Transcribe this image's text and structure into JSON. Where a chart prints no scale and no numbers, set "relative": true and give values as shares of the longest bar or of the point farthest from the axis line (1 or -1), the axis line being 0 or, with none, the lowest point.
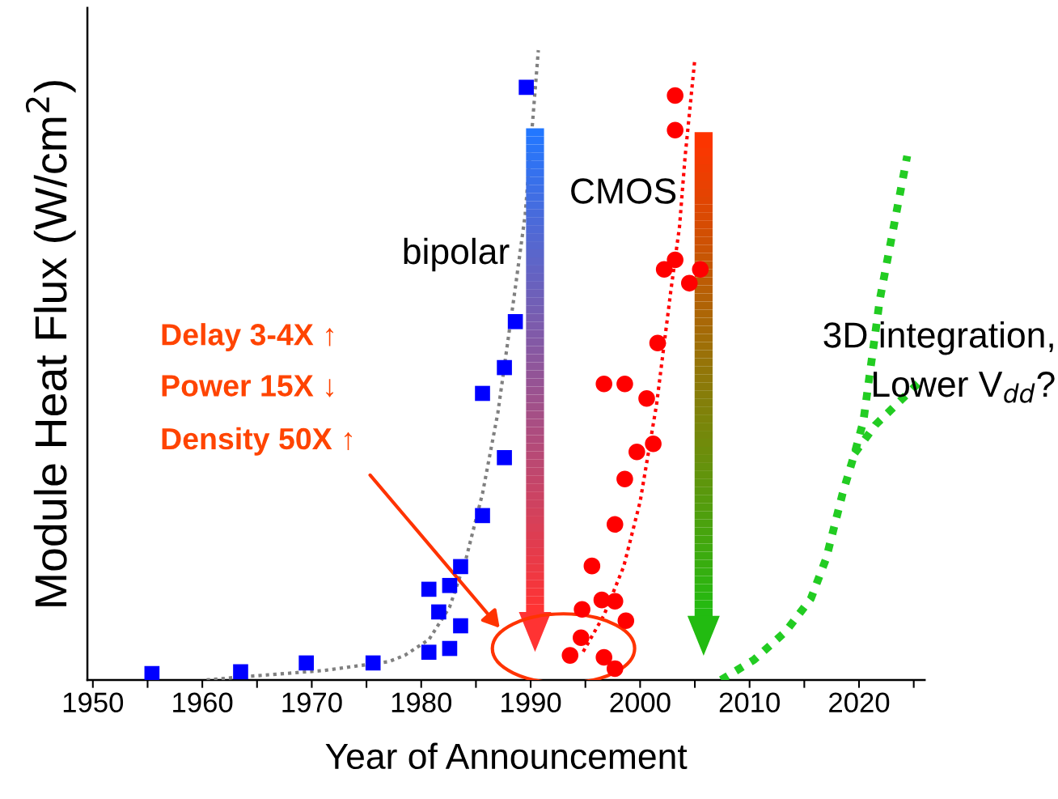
{
  "chart_data": {
    "type": "scatter",
    "relative": true,
    "xlabel": "Year of Announcement",
    "ylabel": "Module Heat Flux (W/cm$^{2}$)",
    "xlim": [
      1949.5,
      2026
    ],
    "xticks": [
      1950,
      {
        "value": 1955,
        "label": null
      },
      1960,
      {
        "value": 1965,
        "label": null
      },
      1970,
      {
        "value": 1975,
        "label": null
      },
      1980,
      {
        "value": 1985,
        "label": null
      },
      1990,
      {
        "value": 1995,
        "label": null
      },
      2000,
      {
        "value": 2005,
        "label": null
      },
      2010,
      {
        "value": 2015,
        "label": null
      },
      2020,
      {
        "value": 2025,
        "label": null
      }
    ],
    "grid": false,
    "legend": false,
    "series": [
      {
        "type": "scatter",
        "marker": "square",
        "color": "#0000ff",
        "x": [
          1955.4,
          1963.5,
          1969.5,
          1975.6,
          1980.7,
          1980.7,
          1981.6,
          1982.6,
          1982.6,
          1983.6,
          1983.6,
          1985.6,
          1985.6,
          1987.6,
          1987.6,
          1988.6,
          1989.6
        ],
        "values": [
          0.01,
          0.013,
          0.027,
          0.027,
          0.144,
          0.044,
          0.108,
          0.15,
          0.05,
          0.086,
          0.18,
          0.261,
          0.455,
          0.353,
          0.496,
          0.569,
          0.941
        ]
      },
      {
        "type": "scatter",
        "marker": "circle",
        "color": "#ff0000",
        "x": [
          1993.6,
          1994.6,
          1994.7,
          1995.6,
          1996.5,
          1997.7,
          1996.7,
          1997.7,
          1998.7,
          1996.7,
          1998.6,
          1997.7,
          1998.6,
          1999.7,
          2001.2,
          2000.6,
          2001.6,
          2002.2,
          2003.2,
          2004.5,
          2005.5,
          2003.2,
          2003.2
        ],
        "values": [
          0.039,
          0.067,
          0.112,
          0.181,
          0.127,
          0.125,
          0.036,
          0.018,
          0.094,
          0.47,
          0.47,
          0.247,
          0.319,
          0.362,
          0.375,
          0.447,
          0.535,
          0.652,
          0.667,
          0.63,
          0.652,
          0.873,
          0.928
        ]
      },
      {
        "type": "line",
        "line_style": "dotted",
        "color": "#808080",
        "x": [
          1960.4,
          1963.7,
          1971.1,
          1977.0,
          1978.5,
          1980.7,
          1982.6,
          1984.1,
          1985.6,
          1987.0,
          1988.6,
          1989.5,
          1990.7
        ],
        "values": [
          0.0,
          0.005,
          0.015,
          0.029,
          0.039,
          0.064,
          0.116,
          0.193,
          0.296,
          0.424,
          0.623,
          0.739,
          1.0
        ]
      },
      {
        "type": "line",
        "line_style": "dotted",
        "color": "#ff0000",
        "x": [
          1994.8,
          1996.7,
          1998.5,
          2000.0,
          2001.5,
          2002.8,
          2003.6,
          2004.1,
          2005.0
        ],
        "values": [
          0.045,
          0.103,
          0.18,
          0.283,
          0.437,
          0.617,
          0.72,
          0.829,
          0.986
        ]
      },
      {
        "type": "line",
        "line_style": "dotted",
        "color": "#22cc22",
        "x": [
          2007.4,
          2010.4,
          2013.3,
          2015.6,
          2017.0,
          2018.5,
          2019.6,
          2020.4,
          2021.9,
          2024.4
        ],
        "values": [
          0.0,
          0.032,
          0.077,
          0.129,
          0.193,
          0.296,
          0.36,
          0.411,
          0.604,
          0.832
        ]
      },
      {
        "type": "line",
        "line_style": "dotted",
        "color": "#22cc22",
        "x": [
          2019.6,
          2021.5,
          2026.0
        ],
        "values": [
          0.36,
          0.405,
          0.481
        ]
      }
    ],
    "annotations": [
      "bipolar",
      "CMOS",
      "Delay 3-4X ↑",
      "Power 15X ↓",
      "Density 50X ↑",
      "3D integration,\nLower V$_{dd}$?"
    ]
  }
}
